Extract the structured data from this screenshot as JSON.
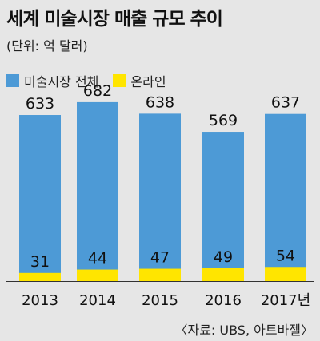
{
  "chart_data": {
    "type": "bar",
    "title": "세계 미술시장 매출 규모 추이",
    "unit": "(단위: 억 달러)",
    "categories": [
      "2013",
      "2014",
      "2015",
      "2016",
      "2017년"
    ],
    "series": [
      {
        "name": "미술시장 전체",
        "values": [
          633,
          682,
          638,
          569,
          637
        ],
        "color": "#4d9ad6"
      },
      {
        "name": "온라인",
        "values": [
          31,
          44,
          47,
          49,
          54
        ],
        "color": "#ffe500"
      }
    ],
    "ylim": [
      0,
      700
    ],
    "grid": false,
    "legend_position": "top-left",
    "source": "〈자료: UBS, 아트바젤〉"
  }
}
